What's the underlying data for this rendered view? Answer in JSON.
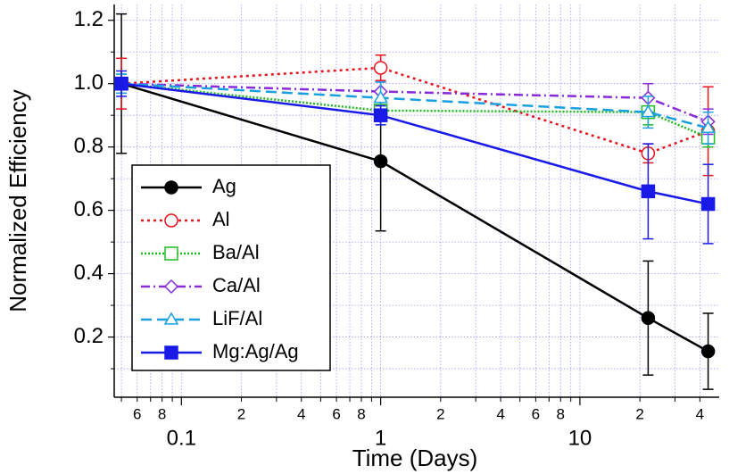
{
  "chart_data": {
    "type": "line",
    "x_label": "Time (Days)",
    "y_label": "Normalized Efficiency",
    "x": [
      0.05,
      1,
      22,
      44
    ],
    "xscale": "log",
    "xlim": [
      0.046,
      50
    ],
    "ylim": [
      0.01,
      1.25
    ],
    "xticks": [
      0.1,
      1,
      10
    ],
    "xminor_labeled": [
      {
        "value": 0.06,
        "label": "6"
      },
      {
        "value": 0.08,
        "label": "8"
      },
      {
        "value": 0.2,
        "label": "2"
      },
      {
        "value": 0.4,
        "label": "4"
      },
      {
        "value": 0.6,
        "label": "6"
      },
      {
        "value": 0.8,
        "label": "8"
      },
      {
        "value": 2,
        "label": "2"
      },
      {
        "value": 4,
        "label": "4"
      },
      {
        "value": 6,
        "label": "6"
      },
      {
        "value": 8,
        "label": "8"
      },
      {
        "value": 20,
        "label": "2"
      },
      {
        "value": 40,
        "label": "4"
      }
    ],
    "xminor": [
      0.05,
      0.07,
      0.09,
      0.3,
      0.5,
      0.7,
      0.9,
      3,
      5,
      7,
      9,
      30
    ],
    "yticks": [
      0.2,
      0.4,
      0.6,
      0.8,
      {
        "value": 1,
        "label": "1.0"
      },
      1.2
    ],
    "yminor": [
      0.1,
      0.3,
      0.5,
      0.7,
      0.9,
      1.1
    ],
    "grid": true,
    "legend": "lower left",
    "series": [
      {
        "name": "Ag",
        "color": "#000000",
        "marker": "circle",
        "filled": true,
        "dash": "solid",
        "values": [
          1.0,
          0.755,
          0.26,
          0.155
        ],
        "errors": [
          0.22,
          0.22,
          0.18,
          0.12
        ]
      },
      {
        "name": "Al",
        "color": "#e8141c",
        "marker": "circle",
        "filled": false,
        "dash": "dot",
        "values": [
          1.0,
          1.05,
          0.78,
          0.85
        ],
        "errors": [
          0.08,
          0.04,
          0.03,
          0.14
        ]
      },
      {
        "name": "Ba/Al",
        "color": "#22b822",
        "marker": "square",
        "filled": false,
        "dash": "fine",
        "values": [
          1.0,
          0.915,
          0.91,
          0.83
        ],
        "errors": [
          0.03,
          0.03,
          0.04,
          0.03
        ]
      },
      {
        "name": "Ca/Al",
        "color": "#8a2bd8",
        "marker": "diamond",
        "filled": false,
        "dash": "dashdot",
        "values": [
          1.0,
          0.975,
          0.955,
          0.88
        ],
        "errors": [
          0.02,
          0.03,
          0.045,
          0.04
        ]
      },
      {
        "name": "LiF/Al",
        "color": "#1aa0e0",
        "marker": "triangle",
        "filled": false,
        "dash": "dash",
        "values": [
          1.0,
          0.955,
          0.91,
          0.86
        ],
        "errors": [
          0.03,
          0.05,
          0.05,
          0.05
        ]
      },
      {
        "name": "Mg:Ag/Ag",
        "color": "#1a1ae8",
        "marker": "square",
        "filled": true,
        "dash": "solid",
        "values": [
          1.0,
          0.9,
          0.66,
          0.62
        ],
        "errors": [
          0.04,
          0.03,
          0.15,
          0.125
        ]
      }
    ]
  }
}
